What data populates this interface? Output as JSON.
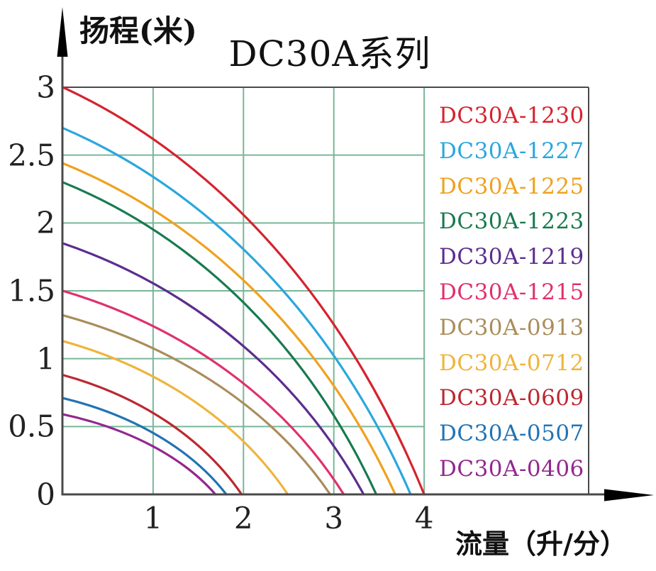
{
  "chart_data": {
    "type": "line",
    "title": "DC30A系列",
    "xlabel": "流量（升/分）",
    "ylabel": "扬程(米)",
    "xlim": [
      0,
      4.35
    ],
    "ylim": [
      0,
      3
    ],
    "x_ticks": [
      1,
      2,
      3,
      4
    ],
    "y_ticks": [
      0,
      0.5,
      1,
      1.5,
      2,
      2.5,
      3
    ],
    "grid": true,
    "grid_color": "#79b698",
    "axis_color": "#4a4a4a",
    "arrow_color": "#000000",
    "legend_position": "inside-right",
    "series": [
      {
        "name": "DC30A-1230",
        "color": "#d5232e",
        "shutoff_head_m": 3.0,
        "max_flow_l_min": 4.0,
        "points": [
          [
            0,
            3.0
          ],
          [
            1.0,
            2.61
          ],
          [
            2.0,
            2.11
          ],
          [
            3.0,
            1.4
          ],
          [
            4.0,
            0
          ]
        ]
      },
      {
        "name": "DC30A-1227",
        "color": "#2ba7dd",
        "shutoff_head_m": 2.7,
        "max_flow_l_min": 3.85,
        "points": [
          [
            0,
            2.7
          ],
          [
            0.96,
            2.35
          ],
          [
            1.93,
            1.78
          ],
          [
            2.89,
            1.13
          ],
          [
            3.85,
            0
          ]
        ]
      },
      {
        "name": "DC30A-1225",
        "color": "#efa11f",
        "shutoff_head_m": 2.44,
        "max_flow_l_min": 3.68,
        "points": [
          [
            0,
            2.44
          ],
          [
            0.92,
            2.12
          ],
          [
            1.84,
            1.61
          ],
          [
            2.76,
            1.02
          ],
          [
            3.68,
            0
          ]
        ]
      },
      {
        "name": "DC30A-1223",
        "color": "#197a50",
        "shutoff_head_m": 2.3,
        "max_flow_l_min": 3.47,
        "points": [
          [
            0,
            2.3
          ],
          [
            0.87,
            2.0
          ],
          [
            1.74,
            1.52
          ],
          [
            2.6,
            0.97
          ],
          [
            3.47,
            0
          ]
        ]
      },
      {
        "name": "DC30A-1219",
        "color": "#5c2d8e",
        "shutoff_head_m": 1.85,
        "max_flow_l_min": 3.33,
        "points": [
          [
            0,
            1.85
          ],
          [
            0.83,
            1.61
          ],
          [
            1.67,
            1.22
          ],
          [
            2.5,
            0.78
          ],
          [
            3.33,
            0
          ]
        ]
      },
      {
        "name": "DC30A-1215",
        "color": "#e0306e",
        "shutoff_head_m": 1.5,
        "max_flow_l_min": 3.11,
        "points": [
          [
            0,
            1.5
          ],
          [
            0.78,
            1.31
          ],
          [
            1.56,
            0.99
          ],
          [
            2.33,
            0.63
          ],
          [
            3.11,
            0
          ]
        ]
      },
      {
        "name": "DC30A-0913",
        "color": "#a98d5b",
        "shutoff_head_m": 1.32,
        "max_flow_l_min": 2.96,
        "points": [
          [
            0,
            1.32
          ],
          [
            0.74,
            1.15
          ],
          [
            1.48,
            0.87
          ],
          [
            2.22,
            0.55
          ],
          [
            2.96,
            0
          ]
        ]
      },
      {
        "name": "DC30A-0712",
        "color": "#efb43c",
        "shutoff_head_m": 1.13,
        "max_flow_l_min": 2.49,
        "points": [
          [
            0,
            1.13
          ],
          [
            0.62,
            0.98
          ],
          [
            1.25,
            0.75
          ],
          [
            1.87,
            0.47
          ],
          [
            2.49,
            0
          ]
        ]
      },
      {
        "name": "DC30A-0609",
        "color": "#bb2831",
        "shutoff_head_m": 0.88,
        "max_flow_l_min": 1.98,
        "points": [
          [
            0,
            0.88
          ],
          [
            0.5,
            0.77
          ],
          [
            0.99,
            0.58
          ],
          [
            1.49,
            0.37
          ],
          [
            1.98,
            0
          ]
        ]
      },
      {
        "name": "DC30A-0507",
        "color": "#2173b4",
        "shutoff_head_m": 0.71,
        "max_flow_l_min": 1.81,
        "points": [
          [
            0,
            0.71
          ],
          [
            0.45,
            0.62
          ],
          [
            0.91,
            0.47
          ],
          [
            1.36,
            0.3
          ],
          [
            1.81,
            0
          ]
        ]
      },
      {
        "name": "DC30A-0406",
        "color": "#93278f",
        "shutoff_head_m": 0.59,
        "max_flow_l_min": 1.69,
        "points": [
          [
            0,
            0.59
          ],
          [
            0.42,
            0.51
          ],
          [
            0.85,
            0.39
          ],
          [
            1.27,
            0.25
          ],
          [
            1.69,
            0
          ]
        ]
      }
    ]
  }
}
